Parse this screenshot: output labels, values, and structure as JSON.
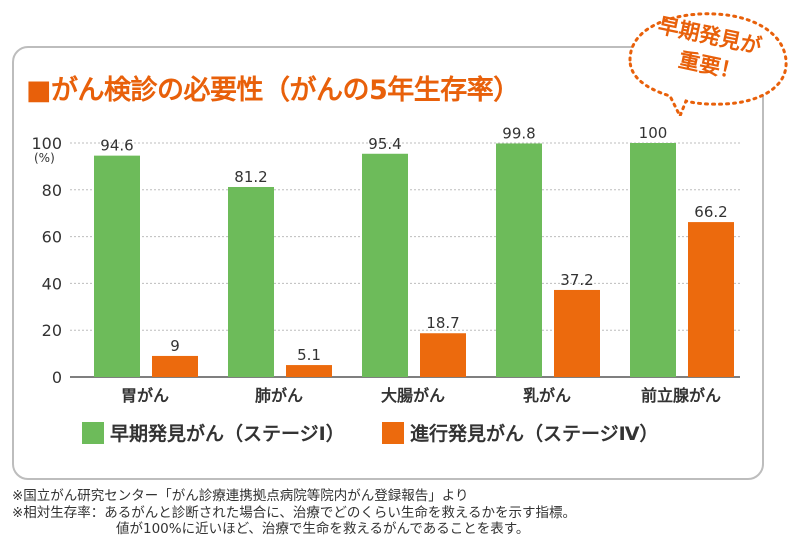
{
  "title": "■がん検診の必要性（がんの5年生存率）",
  "bubble": {
    "line1": "早期発見が",
    "line2": "重要！"
  },
  "colors": {
    "early": "#6dbb5a",
    "advanced": "#ec6a0d",
    "accent": "#e8600a"
  },
  "chart_data": {
    "type": "bar",
    "categories": [
      "胃がん",
      "肺がん",
      "大腸がん",
      "乳がん",
      "前立腺がん"
    ],
    "series": [
      {
        "name": "早期発見がん（ステージⅠ）",
        "values": [
          94.6,
          81.2,
          95.4,
          99.8,
          100
        ]
      },
      {
        "name": "進行発見がん（ステージⅣ）",
        "values": [
          9,
          5.1,
          18.7,
          37.2,
          66.2
        ]
      }
    ],
    "data_labels": [
      [
        "94.6",
        "81.2",
        "95.4",
        "99.8",
        "100"
      ],
      [
        "9",
        "5.1",
        "18.7",
        "37.2",
        "66.2"
      ]
    ],
    "yticks": [
      "0",
      "20",
      "40",
      "60",
      "80",
      "100"
    ],
    "yunit": "(%)",
    "ylim": [
      0,
      100
    ],
    "grid": true,
    "legend_position": "bottom"
  },
  "legend": {
    "early": "早期発見がん（ステージⅠ）",
    "advanced": "進行発見がん（ステージⅣ）"
  },
  "notes": [
    "※国立がん研究センター「がん診療連携拠点病院等院内がん登録報告」より",
    "※相対生存率：あるがんと診断された場合に、治療でどのくらい生命を救えるかを示す指標。",
    "値が100%に近いほど、治療で生命を救えるがんであることを表す。"
  ]
}
